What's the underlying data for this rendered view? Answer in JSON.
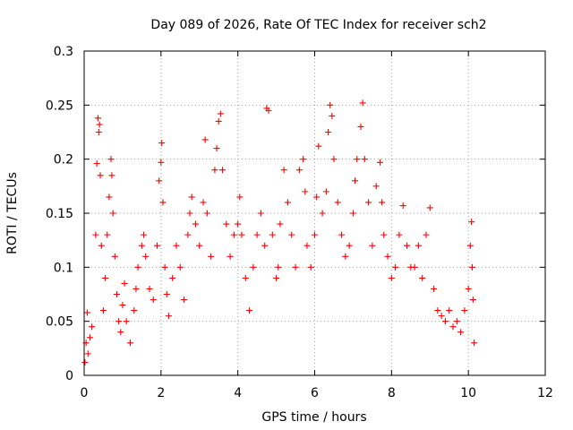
{
  "chart_data": {
    "type": "scatter",
    "title": "Day 089 of 2026, Rate Of TEC Index for receiver sch2",
    "xlabel": "GPS time / hours",
    "ylabel": "ROTI / TECUs",
    "xlim": [
      0,
      12
    ],
    "ylim": [
      0,
      0.3
    ],
    "xticks": [
      0,
      2,
      4,
      6,
      8,
      10,
      12
    ],
    "yticks": [
      0,
      0.05,
      0.1,
      0.15,
      0.2,
      0.25,
      0.3
    ],
    "xtick_labels": [
      "0",
      "2",
      "4",
      "6",
      "8",
      "10",
      "12"
    ],
    "ytick_labels": [
      "0",
      "0.05",
      "0.1",
      "0.15",
      "0.2",
      "0.25",
      "0.3"
    ],
    "grid": true,
    "marker": "+",
    "series": [
      {
        "color": "#ff0000",
        "points": [
          [
            0.02,
            0.012
          ],
          [
            0.05,
            0.03
          ],
          [
            0.08,
            0.058
          ],
          [
            0.1,
            0.02
          ],
          [
            0.15,
            0.035
          ],
          [
            0.2,
            0.045
          ],
          [
            0.3,
            0.13
          ],
          [
            0.33,
            0.196
          ],
          [
            0.36,
            0.238
          ],
          [
            0.38,
            0.225
          ],
          [
            0.4,
            0.232
          ],
          [
            0.42,
            0.185
          ],
          [
            0.45,
            0.12
          ],
          [
            0.5,
            0.06
          ],
          [
            0.55,
            0.09
          ],
          [
            0.6,
            0.13
          ],
          [
            0.65,
            0.165
          ],
          [
            0.7,
            0.2
          ],
          [
            0.72,
            0.185
          ],
          [
            0.75,
            0.15
          ],
          [
            0.8,
            0.11
          ],
          [
            0.85,
            0.075
          ],
          [
            0.9,
            0.05
          ],
          [
            0.95,
            0.04
          ],
          [
            1.0,
            0.065
          ],
          [
            1.05,
            0.085
          ],
          [
            1.1,
            0.05
          ],
          [
            1.2,
            0.03
          ],
          [
            1.3,
            0.06
          ],
          [
            1.35,
            0.08
          ],
          [
            1.4,
            0.1
          ],
          [
            1.5,
            0.12
          ],
          [
            1.55,
            0.13
          ],
          [
            1.6,
            0.11
          ],
          [
            1.7,
            0.08
          ],
          [
            1.8,
            0.07
          ],
          [
            1.9,
            0.12
          ],
          [
            1.95,
            0.18
          ],
          [
            2.0,
            0.197
          ],
          [
            2.02,
            0.215
          ],
          [
            2.05,
            0.16
          ],
          [
            2.1,
            0.1
          ],
          [
            2.15,
            0.075
          ],
          [
            2.2,
            0.055
          ],
          [
            2.3,
            0.09
          ],
          [
            2.4,
            0.12
          ],
          [
            2.5,
            0.1
          ],
          [
            2.6,
            0.07
          ],
          [
            2.7,
            0.13
          ],
          [
            2.75,
            0.15
          ],
          [
            2.8,
            0.165
          ],
          [
            2.9,
            0.14
          ],
          [
            3.0,
            0.12
          ],
          [
            3.1,
            0.16
          ],
          [
            3.15,
            0.218
          ],
          [
            3.2,
            0.15
          ],
          [
            3.3,
            0.11
          ],
          [
            3.4,
            0.19
          ],
          [
            3.45,
            0.21
          ],
          [
            3.5,
            0.235
          ],
          [
            3.55,
            0.242
          ],
          [
            3.6,
            0.19
          ],
          [
            3.7,
            0.14
          ],
          [
            3.8,
            0.11
          ],
          [
            3.9,
            0.13
          ],
          [
            4.0,
            0.14
          ],
          [
            4.05,
            0.165
          ],
          [
            4.1,
            0.13
          ],
          [
            4.2,
            0.09
          ],
          [
            4.3,
            0.06
          ],
          [
            4.4,
            0.1
          ],
          [
            4.5,
            0.13
          ],
          [
            4.6,
            0.15
          ],
          [
            4.7,
            0.12
          ],
          [
            4.75,
            0.247
          ],
          [
            4.8,
            0.245
          ],
          [
            4.9,
            0.13
          ],
          [
            5.0,
            0.09
          ],
          [
            5.05,
            0.1
          ],
          [
            5.1,
            0.14
          ],
          [
            5.2,
            0.19
          ],
          [
            5.3,
            0.16
          ],
          [
            5.4,
            0.13
          ],
          [
            5.5,
            0.1
          ],
          [
            5.6,
            0.19
          ],
          [
            5.7,
            0.2
          ],
          [
            5.75,
            0.17
          ],
          [
            5.8,
            0.12
          ],
          [
            5.9,
            0.1
          ],
          [
            6.0,
            0.13
          ],
          [
            6.05,
            0.165
          ],
          [
            6.1,
            0.212
          ],
          [
            6.2,
            0.15
          ],
          [
            6.3,
            0.17
          ],
          [
            6.35,
            0.225
          ],
          [
            6.4,
            0.25
          ],
          [
            6.45,
            0.24
          ],
          [
            6.5,
            0.2
          ],
          [
            6.6,
            0.16
          ],
          [
            6.7,
            0.13
          ],
          [
            6.8,
            0.11
          ],
          [
            6.9,
            0.12
          ],
          [
            7.0,
            0.15
          ],
          [
            7.05,
            0.18
          ],
          [
            7.1,
            0.2
          ],
          [
            7.2,
            0.23
          ],
          [
            7.25,
            0.252
          ],
          [
            7.3,
            0.2
          ],
          [
            7.4,
            0.16
          ],
          [
            7.5,
            0.12
          ],
          [
            7.6,
            0.175
          ],
          [
            7.7,
            0.197
          ],
          [
            7.75,
            0.16
          ],
          [
            7.8,
            0.13
          ],
          [
            7.9,
            0.11
          ],
          [
            8.0,
            0.09
          ],
          [
            8.1,
            0.1
          ],
          [
            8.2,
            0.13
          ],
          [
            8.3,
            0.157
          ],
          [
            8.4,
            0.12
          ],
          [
            8.5,
            0.1
          ],
          [
            8.6,
            0.1
          ],
          [
            8.7,
            0.12
          ],
          [
            8.8,
            0.09
          ],
          [
            8.9,
            0.13
          ],
          [
            9.0,
            0.155
          ],
          [
            9.1,
            0.08
          ],
          [
            9.2,
            0.06
          ],
          [
            9.3,
            0.055
          ],
          [
            9.4,
            0.05
          ],
          [
            9.5,
            0.06
          ],
          [
            9.6,
            0.045
          ],
          [
            9.7,
            0.05
          ],
          [
            9.8,
            0.04
          ],
          [
            9.9,
            0.06
          ],
          [
            10.0,
            0.08
          ],
          [
            10.05,
            0.12
          ],
          [
            10.08,
            0.142
          ],
          [
            10.1,
            0.1
          ],
          [
            10.12,
            0.07
          ],
          [
            10.15,
            0.03
          ]
        ]
      }
    ]
  }
}
